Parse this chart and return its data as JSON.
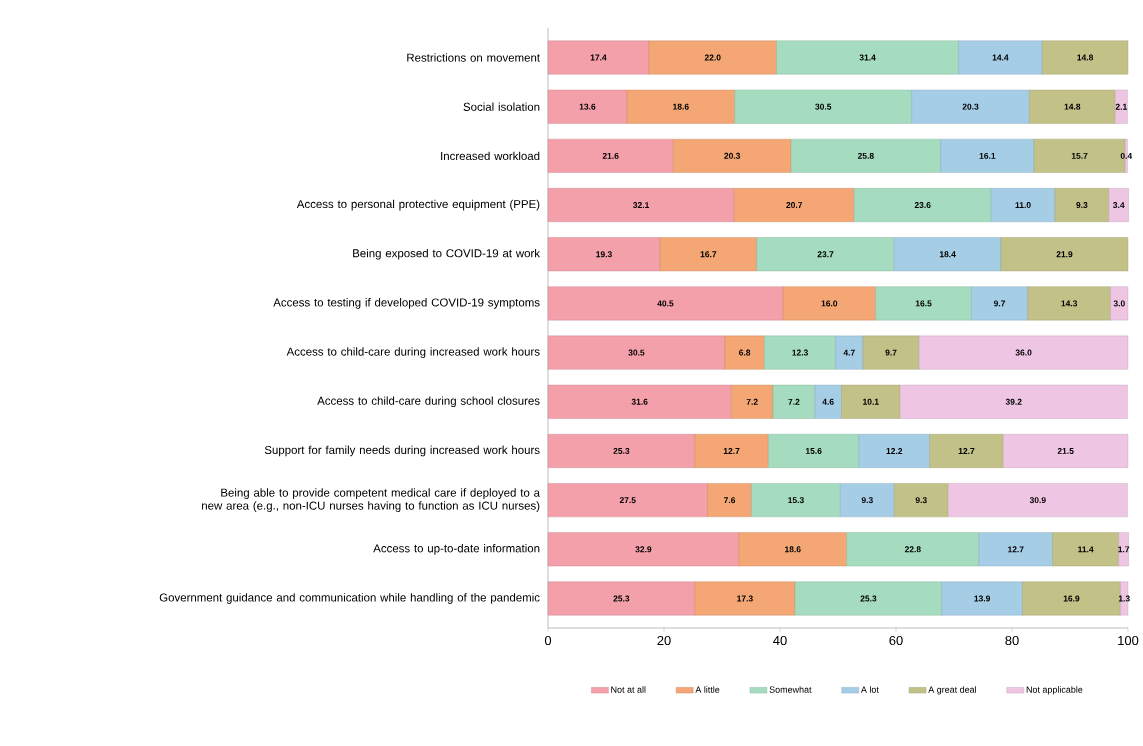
{
  "chart_data": {
    "type": "bar",
    "orientation": "horizontal",
    "stacked": true,
    "legend": "bottom",
    "grid": false,
    "categories": [
      "Restrictions on movement",
      "Social isolation",
      "Increased workload",
      "Access to personal protective equipment (PPE)",
      "Being exposed to COVID-19 at work",
      "Access to testing if developed COVID-19 symptoms",
      "Access to child-care during increased work hours",
      "Access to child-care during school closures",
      "Support for family needs during increased work hours",
      "Being able to provide competent medical care if deployed to a new area (e.g., non-ICU nurses having to function as ICU nurses)",
      "Access to up-to-date information",
      "Government guidance and communication while handling of the pandemic"
    ],
    "xlim": [
      0,
      100
    ],
    "xticks": [
      0,
      20,
      40,
      60,
      80,
      100
    ],
    "series": [
      {
        "name": "Not at all",
        "color": "#f4a0ab",
        "values": [
          17.4,
          13.6,
          21.6,
          32.1,
          19.3,
          40.5,
          30.5,
          31.6,
          25.3,
          27.5,
          32.9,
          25.3
        ],
        "value_labels": [
          "17.4",
          "13.6",
          "21.6",
          "32.1",
          "19.3",
          "40.5",
          "30.5",
          "31.6",
          "25.3",
          "27.5",
          "32.9",
          "25.3"
        ]
      },
      {
        "name": "A little",
        "color": "#f4a774",
        "values": [
          22.0,
          18.6,
          20.3,
          20.7,
          16.7,
          16.0,
          6.8,
          7.2,
          12.7,
          7.6,
          18.6,
          17.3
        ],
        "value_labels": [
          "22.0",
          "18.6",
          "20.3",
          "20.7",
          "16.7",
          "16.0",
          "6.8",
          "7.2",
          "12.7",
          "7.6",
          "18.6",
          "17.3"
        ]
      },
      {
        "name": "Somewhat",
        "color": "#a5dcc0",
        "values": [
          31.4,
          30.5,
          25.8,
          23.6,
          23.7,
          16.5,
          12.3,
          7.2,
          15.6,
          15.3,
          22.8,
          25.3
        ],
        "value_labels": [
          "31.4",
          "30.5",
          "25.8",
          "23.6",
          "23.7",
          "16.5",
          "12.3",
          "7.2",
          "15.6",
          "15.3",
          "22.8",
          "25.3"
        ]
      },
      {
        "name": "A lot",
        "color": "#a6cde6",
        "values": [
          14.4,
          20.3,
          16.1,
          11.0,
          18.4,
          9.7,
          4.7,
          4.6,
          12.2,
          9.3,
          12.7,
          13.9
        ],
        "value_labels": [
          "14.4",
          "20.3",
          "16.1",
          "11.0",
          "18.4",
          "9.7",
          "4.7",
          "4.6",
          "12.2",
          "9.3",
          "12.7",
          "13.9"
        ]
      },
      {
        "name": "A great deal",
        "color": "#c2c288",
        "values": [
          14.8,
          14.8,
          15.7,
          9.3,
          21.9,
          14.3,
          9.7,
          10.1,
          12.7,
          9.3,
          11.4,
          16.9
        ],
        "value_labels": [
          "14.8",
          "14.8",
          "15.7",
          "9.3",
          "21.9",
          "14.3",
          "9.7",
          "10.1",
          "12.7",
          "9.3",
          "11.4",
          "16.9"
        ]
      },
      {
        "name": "Not applicable",
        "color": "#eec6e4",
        "values": [
          null,
          2.1,
          0.4,
          3.4,
          null,
          3.0,
          36.0,
          39.2,
          21.5,
          30.9,
          1.7,
          1.3
        ],
        "value_labels": [
          null,
          "2.1",
          "0.4",
          "3.4",
          null,
          "3.0",
          "36.0",
          "39.2",
          "21.5",
          "30.9",
          "1.7",
          "1.3"
        ]
      }
    ]
  }
}
